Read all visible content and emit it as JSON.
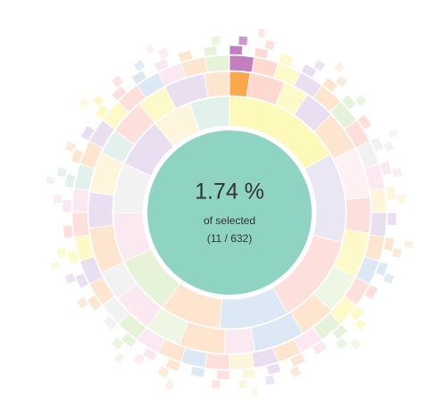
{
  "chart_data": {
    "type": "sunburst",
    "center": {
      "percent": "1.74 %",
      "caption": "of selected",
      "count": "(11 / 632)",
      "color": "#8fd3c3"
    },
    "rings": [
      {
        "values": [
          60,
          45,
          45,
          35,
          30,
          30,
          25,
          25,
          25,
          20,
          20
        ],
        "colors": [
          "#fdf9b8",
          "#ebe6f4",
          "#fde0dc",
          "#dce8f3",
          "#fde5cf",
          "#e6f3d8",
          "#fbe9f1",
          "#f2f2f2",
          "#e9dff1",
          "#fdf6dc",
          "#e3f1ec"
        ]
      },
      {
        "values": [
          8,
          14,
          10,
          12,
          16,
          20,
          14,
          18,
          16,
          14,
          20,
          12,
          18,
          14,
          16,
          12,
          18,
          14,
          16,
          10,
          14,
          12,
          16,
          10
        ],
        "colors": [
          "#f9a94b",
          "#fdd9d0",
          "#fdf9c8",
          "#e9dff1",
          "#fde5cf",
          "#fdf1f4",
          "#fde0dc",
          "#fdf9c8",
          "#eef6e4",
          "#fde5cf",
          "#dce8f3",
          "#fbe9f1",
          "#fde5cf",
          "#eef6e4",
          "#fbe9f1",
          "#f2f2f2",
          "#fde5cf",
          "#e9dff1",
          "#fdf6dc",
          "#e3f1ec",
          "#fde0dc",
          "#fdf9c8",
          "#e9dff1",
          "#fde5cf"
        ]
      },
      {
        "values": [
          1,
          1,
          1,
          1,
          1,
          1,
          1,
          1,
          1,
          1,
          1,
          1,
          1,
          1,
          1,
          1,
          1,
          1,
          1,
          1,
          1,
          1,
          1,
          1,
          1,
          1,
          1,
          1,
          1,
          1,
          1,
          1,
          1,
          1,
          1,
          1,
          1,
          1,
          1,
          1
        ],
        "levels": [
          2,
          3,
          1,
          2,
          3,
          2,
          1,
          3,
          2,
          2,
          1,
          3,
          2,
          1,
          2,
          3,
          1,
          2,
          2,
          3,
          2,
          1,
          3,
          2,
          3,
          1,
          2,
          2,
          3,
          1,
          2,
          3,
          2,
          1,
          3,
          2,
          2,
          3,
          1,
          2
        ],
        "colors": [
          "#c17fc0",
          "#fdd9d0",
          "#fdf9c8",
          "#e9dff1",
          "#fde5cf",
          "#e6f3d8",
          "#fde0dc",
          "#f2f2f2",
          "#fbe9f1",
          "#fdf6dc",
          "#e9dff1",
          "#fde5cf",
          "#dce8f3",
          "#fde0dc",
          "#fdf9c8",
          "#e6f3d8",
          "#fbe9f1",
          "#fde5cf",
          "#e9dff1",
          "#fdf6dc",
          "#fde0dc",
          "#dce8f3",
          "#fde5cf",
          "#fbe9f1",
          "#e6f3d8",
          "#f2f2f2",
          "#fde5cf",
          "#e9dff1",
          "#fdf9c8",
          "#fde0dc",
          "#fbe9f1",
          "#e3f1ec",
          "#fde5cf",
          "#e9dff1",
          "#fdf9c8",
          "#fde0dc",
          "#dce8f3",
          "#fbe9f1",
          "#fde5cf",
          "#e6f3d8"
        ]
      }
    ]
  }
}
